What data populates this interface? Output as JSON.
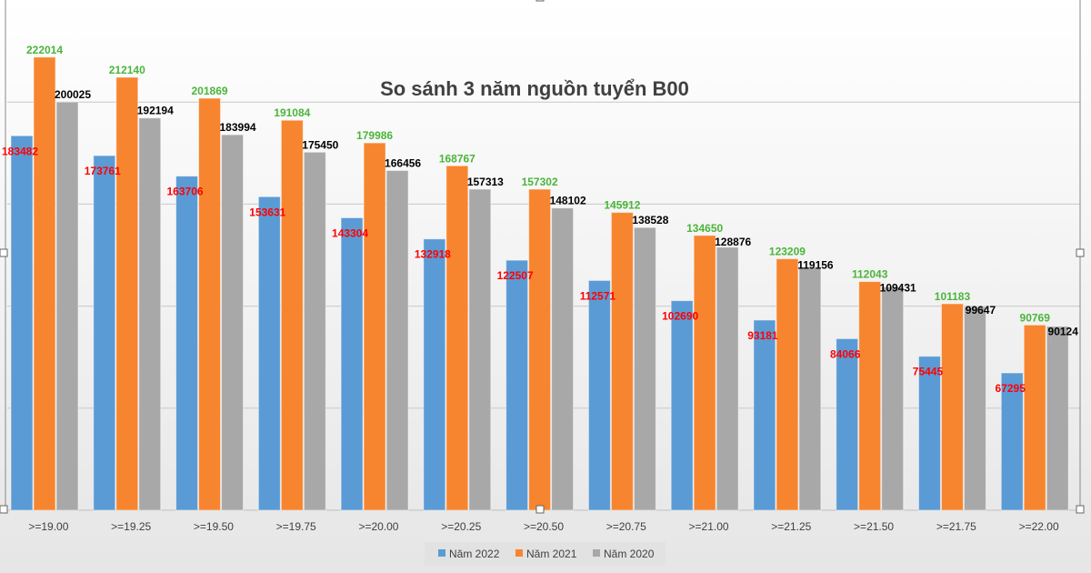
{
  "chart_data": {
    "type": "bar",
    "title": "So sánh 3 năm nguồn tuyển B00",
    "categories": [
      ">=19.00",
      ">=19.25",
      ">=19.50",
      ">=19.75",
      ">=20.00",
      ">=20.25",
      ">=20.50",
      ">=20.75",
      ">=21.00",
      ">=21.25",
      ">=21.50",
      ">=21.75",
      ">=22.00"
    ],
    "series": [
      {
        "name": "Năm 2022",
        "color": "#5b9bd5",
        "label_color": "#ff0000",
        "values": [
          183482,
          173761,
          163706,
          153631,
          143304,
          132918,
          122507,
          112571,
          102690,
          93181,
          84066,
          75445,
          67295
        ]
      },
      {
        "name": "Năm 2021",
        "color": "#f7852f",
        "label_color": "#4ab53a",
        "values": [
          222014,
          212140,
          201869,
          191084,
          179986,
          168767,
          157302,
          145912,
          134650,
          123209,
          112043,
          101183,
          90769
        ]
      },
      {
        "name": "Năm 2020",
        "color": "#a8a8a8",
        "label_color": "#000000",
        "values": [
          200025,
          192194,
          183994,
          175450,
          166456,
          157313,
          148102,
          138528,
          128876,
          119156,
          109431,
          99647,
          90124
        ]
      }
    ],
    "ylim": [
      0,
      250000
    ],
    "grid": true,
    "gridline_step": 50000,
    "y_tick_labels_shown": false,
    "legend_position": "bottom"
  }
}
